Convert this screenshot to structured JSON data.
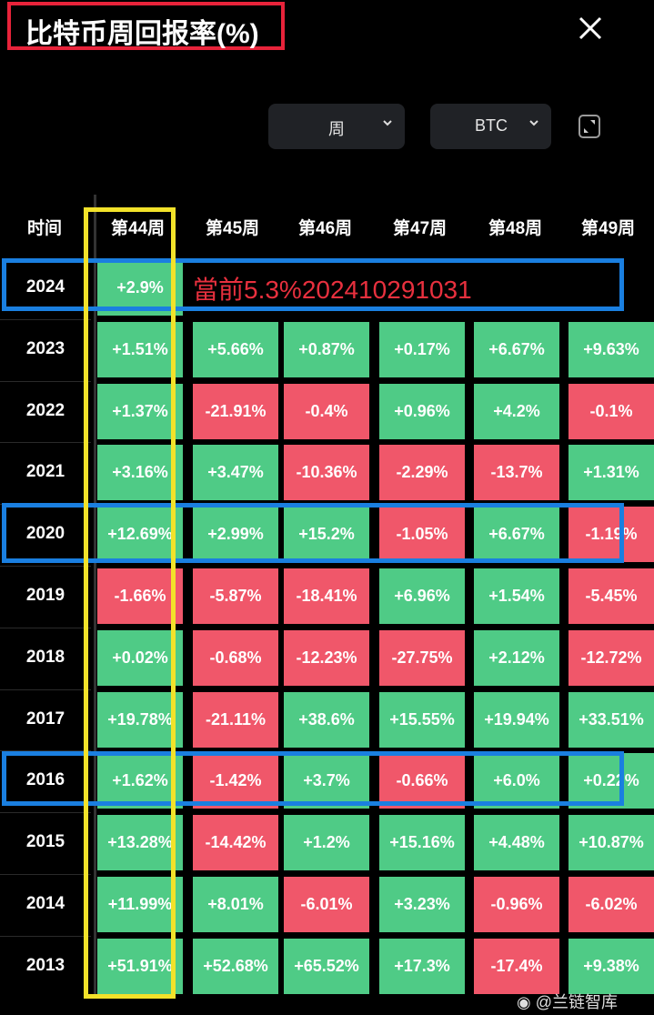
{
  "header": {
    "title": "比特币周回报率(%)",
    "close_icon": "close-icon"
  },
  "controls": {
    "period_select": "周",
    "asset_select": "BTC",
    "expand_icon": "expand-icon"
  },
  "table": {
    "time_header": "时间",
    "columns": [
      "第44周",
      "第45周",
      "第46周",
      "第47周",
      "第48周",
      "第49周"
    ],
    "rows": [
      {
        "year": "2024",
        "values": [
          "+2.9%"
        ]
      },
      {
        "year": "2023",
        "values": [
          "+1.51%",
          "+5.66%",
          "+0.87%",
          "+0.17%",
          "+6.67%",
          "+9.63%"
        ]
      },
      {
        "year": "2022",
        "values": [
          "+1.37%",
          "-21.91%",
          "-0.4%",
          "+0.96%",
          "+4.2%",
          "-0.1%"
        ]
      },
      {
        "year": "2021",
        "values": [
          "+3.16%",
          "+3.47%",
          "-10.36%",
          "-2.29%",
          "-13.7%",
          "+1.31%"
        ]
      },
      {
        "year": "2020",
        "values": [
          "+12.69%",
          "+2.99%",
          "+15.2%",
          "-1.05%",
          "+6.67%",
          "-1.19%"
        ]
      },
      {
        "year": "2019",
        "values": [
          "-1.66%",
          "-5.87%",
          "-18.41%",
          "+6.96%",
          "+1.54%",
          "-5.45%"
        ]
      },
      {
        "year": "2018",
        "values": [
          "+0.02%",
          "-0.68%",
          "-12.23%",
          "-27.75%",
          "+2.12%",
          "-12.72%"
        ]
      },
      {
        "year": "2017",
        "values": [
          "+19.78%",
          "-21.11%",
          "+38.6%",
          "+15.55%",
          "+19.94%",
          "+33.51%"
        ]
      },
      {
        "year": "2016",
        "values": [
          "+1.62%",
          "-1.42%",
          "+3.7%",
          "-0.66%",
          "+6.0%",
          "+0.22%"
        ]
      },
      {
        "year": "2015",
        "values": [
          "+13.28%",
          "-14.42%",
          "+1.2%",
          "+15.16%",
          "+4.48%",
          "+10.87%"
        ]
      },
      {
        "year": "2014",
        "values": [
          "+11.99%",
          "+8.01%",
          "-6.01%",
          "+3.23%",
          "-0.96%",
          "-6.02%"
        ]
      },
      {
        "year": "2013",
        "values": [
          "+51.91%",
          "+52.68%",
          "+65.52%",
          "+17.3%",
          "-17.4%",
          "+9.38%"
        ]
      }
    ]
  },
  "annotation": {
    "note": "當前5.3%202410291031"
  },
  "colors": {
    "positive": "#4fcb86",
    "negative": "#f0576a",
    "highlight_row": "#1a7fe0",
    "highlight_col": "#f2e22a",
    "title_box": "#e8233a"
  },
  "watermark": "@兰链智库"
}
